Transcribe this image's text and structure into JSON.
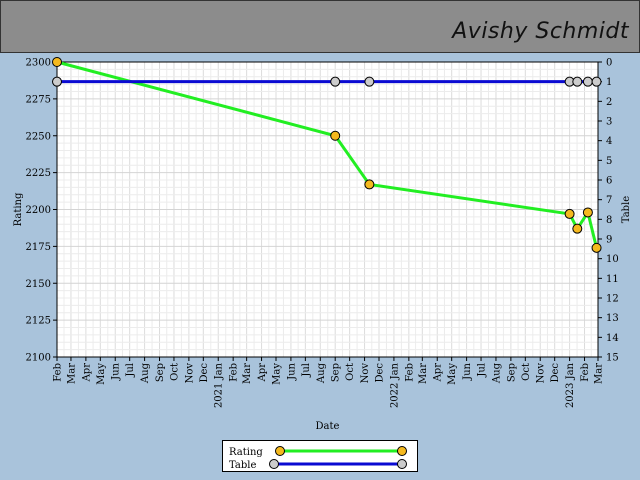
{
  "header": {
    "name": "Avishy Schmidt"
  },
  "chart_data": {
    "type": "line",
    "xlabel": "Date",
    "ylabel": "Rating",
    "y2label": "Table",
    "ylim": [
      2100,
      2300
    ],
    "y2lim": [
      0,
      15
    ],
    "y_ticks": [
      2100,
      2125,
      2150,
      2175,
      2200,
      2225,
      2250,
      2275,
      2300
    ],
    "y2_ticks": [
      0,
      1,
      2,
      3,
      4,
      5,
      6,
      7,
      8,
      9,
      10,
      11,
      12,
      13,
      14,
      15
    ],
    "xlim": [
      "2020-02-01",
      "2023-03-01"
    ],
    "x_ticks": [
      {
        "date": "2020-02-01",
        "label": "Feb"
      },
      {
        "date": "2020-03-01",
        "label": "Mar"
      },
      {
        "date": "2020-04-01",
        "label": "Apr"
      },
      {
        "date": "2020-05-01",
        "label": "May"
      },
      {
        "date": "2020-06-01",
        "label": "Jun"
      },
      {
        "date": "2020-07-01",
        "label": "Jul"
      },
      {
        "date": "2020-08-01",
        "label": "Aug"
      },
      {
        "date": "2020-09-01",
        "label": "Sep"
      },
      {
        "date": "2020-10-01",
        "label": "Oct"
      },
      {
        "date": "2020-11-01",
        "label": "Nov"
      },
      {
        "date": "2020-12-01",
        "label": "Dec"
      },
      {
        "date": "2021-01-01",
        "label": "2021 Jan"
      },
      {
        "date": "2021-02-01",
        "label": "Feb"
      },
      {
        "date": "2021-03-01",
        "label": "Mar"
      },
      {
        "date": "2021-04-01",
        "label": "Apr"
      },
      {
        "date": "2021-05-01",
        "label": "May"
      },
      {
        "date": "2021-06-01",
        "label": "Jun"
      },
      {
        "date": "2021-07-01",
        "label": "Jul"
      },
      {
        "date": "2021-08-01",
        "label": "Aug"
      },
      {
        "date": "2021-09-01",
        "label": "Sep"
      },
      {
        "date": "2021-10-01",
        "label": "Oct"
      },
      {
        "date": "2021-11-01",
        "label": "Nov"
      },
      {
        "date": "2021-12-01",
        "label": "Dec"
      },
      {
        "date": "2022-01-01",
        "label": "2022 Jan"
      },
      {
        "date": "2022-02-01",
        "label": "Feb"
      },
      {
        "date": "2022-03-01",
        "label": "Mar"
      },
      {
        "date": "2022-04-01",
        "label": "Apr"
      },
      {
        "date": "2022-05-01",
        "label": "May"
      },
      {
        "date": "2022-06-01",
        "label": "Jun"
      },
      {
        "date": "2022-07-01",
        "label": "Jul"
      },
      {
        "date": "2022-08-01",
        "label": "Aug"
      },
      {
        "date": "2022-09-01",
        "label": "Sep"
      },
      {
        "date": "2022-10-01",
        "label": "Oct"
      },
      {
        "date": "2022-11-01",
        "label": "Nov"
      },
      {
        "date": "2022-12-01",
        "label": "Dec"
      },
      {
        "date": "2023-01-01",
        "label": "2023 Jan"
      },
      {
        "date": "2023-02-01",
        "label": "Feb"
      },
      {
        "date": "2023-03-01",
        "label": "Mar"
      }
    ],
    "grid": true,
    "legend_position": "bottom-center",
    "series": [
      {
        "name": "Rating",
        "axis": "left",
        "color": "#22ee22",
        "marker_color": "#f5b91e",
        "points": [
          {
            "x": "2020-02-01",
            "y": 2300
          },
          {
            "x": "2021-09-01",
            "y": 2250
          },
          {
            "x": "2021-11-11",
            "y": 2217
          },
          {
            "x": "2023-01-01",
            "y": 2197
          },
          {
            "x": "2023-01-17",
            "y": 2187
          },
          {
            "x": "2023-02-08",
            "y": 2198
          },
          {
            "x": "2023-02-26",
            "y": 2174
          }
        ]
      },
      {
        "name": "Table",
        "axis": "right",
        "color": "#0a0ad2",
        "marker_color": "#cccccc",
        "points": [
          {
            "x": "2020-02-01",
            "y": 1
          },
          {
            "x": "2021-09-01",
            "y": 1
          },
          {
            "x": "2021-11-11",
            "y": 1
          },
          {
            "x": "2023-01-01",
            "y": 1
          },
          {
            "x": "2023-01-17",
            "y": 1
          },
          {
            "x": "2023-02-08",
            "y": 1
          },
          {
            "x": "2023-02-26",
            "y": 1
          }
        ]
      }
    ]
  }
}
